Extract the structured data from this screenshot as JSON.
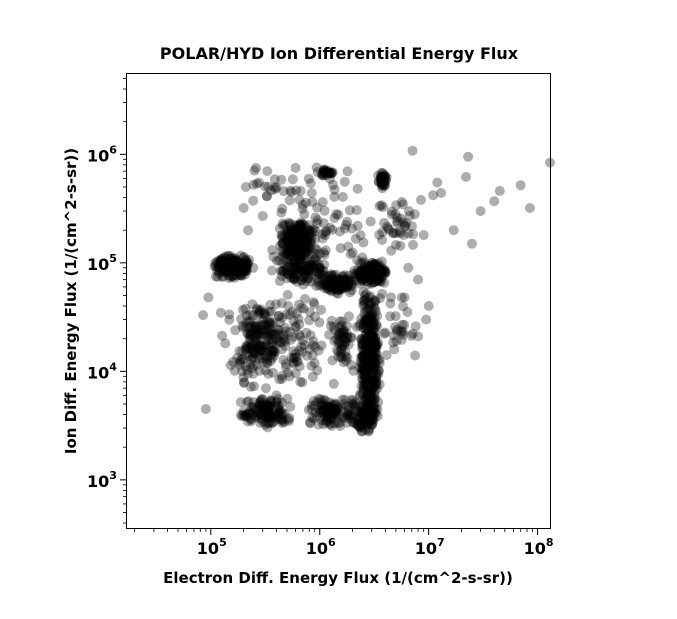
{
  "chart_data": {
    "type": "scatter",
    "title": "POLAR/HYD  Ion Differential Energy Flux",
    "xlabel": "Electron Diff. Energy Flux (1/(cm^2-s-sr))",
    "ylabel": "Ion Diff. Energy Flux (1/(cm^2-s-sr))",
    "x_scale": "log",
    "y_scale": "log",
    "xlim": [
      17000,
      130000000
    ],
    "ylim": [
      360,
      5500000
    ],
    "x_ticks": [
      {
        "value": 100000,
        "base": "10",
        "exp": "5"
      },
      {
        "value": 1000000,
        "base": "10",
        "exp": "6"
      },
      {
        "value": 10000000,
        "base": "10",
        "exp": "7"
      },
      {
        "value": 100000000,
        "base": "10",
        "exp": "8"
      }
    ],
    "y_ticks": [
      {
        "value": 1000,
        "base": "10",
        "exp": "3"
      },
      {
        "value": 10000,
        "base": "10",
        "exp": "4"
      },
      {
        "value": 100000,
        "base": "10",
        "exp": "5"
      },
      {
        "value": 1000000,
        "base": "10",
        "exp": "6"
      }
    ],
    "marker_color": "#000000",
    "marker_opacity": 0.32,
    "grid": false,
    "clusters": [
      {
        "x": [
          100000,
          250000
        ],
        "y": [
          70000,
          120000
        ],
        "n": 170
      },
      {
        "x": [
          420000,
          900000
        ],
        "y": [
          110000,
          250000
        ],
        "n": 220
      },
      {
        "x": [
          350000,
          1300000
        ],
        "y": [
          60000,
          150000
        ],
        "n": 150
      },
      {
        "x": [
          900000,
          2200000
        ],
        "y": [
          50000,
          80000
        ],
        "n": 110
      },
      {
        "x": [
          2000000,
          4200000
        ],
        "y": [
          60000,
          110000
        ],
        "n": 170
      },
      {
        "x": [
          2300000,
          3600000
        ],
        "y": [
          2800,
          60000
        ],
        "n": 380
      },
      {
        "x": [
          1800000,
          3400000
        ],
        "y": [
          2500,
          6000
        ],
        "n": 90
      },
      {
        "x": [
          180000,
          600000
        ],
        "y": [
          3000,
          6000
        ],
        "n": 130
      },
      {
        "x": [
          750000,
          2000000
        ],
        "y": [
          3000,
          6000
        ],
        "n": 110
      },
      {
        "x": [
          100000,
          1800000
        ],
        "y": [
          6000,
          60000
        ],
        "n": 190
      },
      {
        "x": [
          180000,
          450000
        ],
        "y": [
          10000,
          45000
        ],
        "n": 90
      },
      {
        "x": [
          1200000,
          2200000
        ],
        "y": [
          8000,
          40000
        ],
        "n": 50
      },
      {
        "x": [
          3300000,
          4200000
        ],
        "y": [
          480000,
          700000
        ],
        "n": 40
      },
      {
        "x": [
          3000000,
          8000000
        ],
        "y": [
          120000,
          400000
        ],
        "n": 40
      },
      {
        "x": [
          3500000,
          9000000
        ],
        "y": [
          12000,
          60000
        ],
        "n": 30
      },
      {
        "x": [
          150000,
          2500000
        ],
        "y": [
          250000,
          750000
        ],
        "n": 40
      },
      {
        "x": [
          900000,
          1400000
        ],
        "y": [
          600000,
          780000
        ],
        "n": 25
      },
      {
        "x": [
          450000,
          3000000
        ],
        "y": [
          100000,
          500000
        ],
        "n": 40
      }
    ],
    "points": [
      [
        7100000,
        1080000
      ],
      [
        23000000,
        950000
      ],
      [
        130000000,
        840000
      ],
      [
        12000000,
        550000
      ],
      [
        22000000,
        620000
      ],
      [
        45000000,
        460000
      ],
      [
        70000000,
        520000
      ],
      [
        40000000,
        370000
      ],
      [
        85000000,
        320000
      ],
      [
        30000000,
        300000
      ],
      [
        17000000,
        200000
      ],
      [
        25000000,
        150000
      ],
      [
        11000000,
        420000
      ],
      [
        13000000,
        440000
      ],
      [
        8500000,
        380000
      ],
      [
        9000000,
        180000
      ],
      [
        6500000,
        90000
      ],
      [
        8000000,
        70000
      ],
      [
        10000000,
        40000
      ],
      [
        9500000,
        30000
      ],
      [
        8000000,
        21000
      ],
      [
        7500000,
        14000
      ],
      [
        90000,
        4500
      ],
      [
        95000,
        48000
      ],
      [
        85000,
        33000
      ],
      [
        260000,
        750000
      ],
      [
        330000,
        700000
      ],
      [
        600000,
        750000
      ],
      [
        210000,
        500000
      ],
      [
        200000,
        320000
      ],
      [
        300000,
        270000
      ],
      [
        220000,
        200000
      ],
      [
        400000,
        6000
      ],
      [
        1100000,
        700000
      ],
      [
        1700000,
        560000
      ],
      [
        650000,
        380000
      ]
    ]
  }
}
